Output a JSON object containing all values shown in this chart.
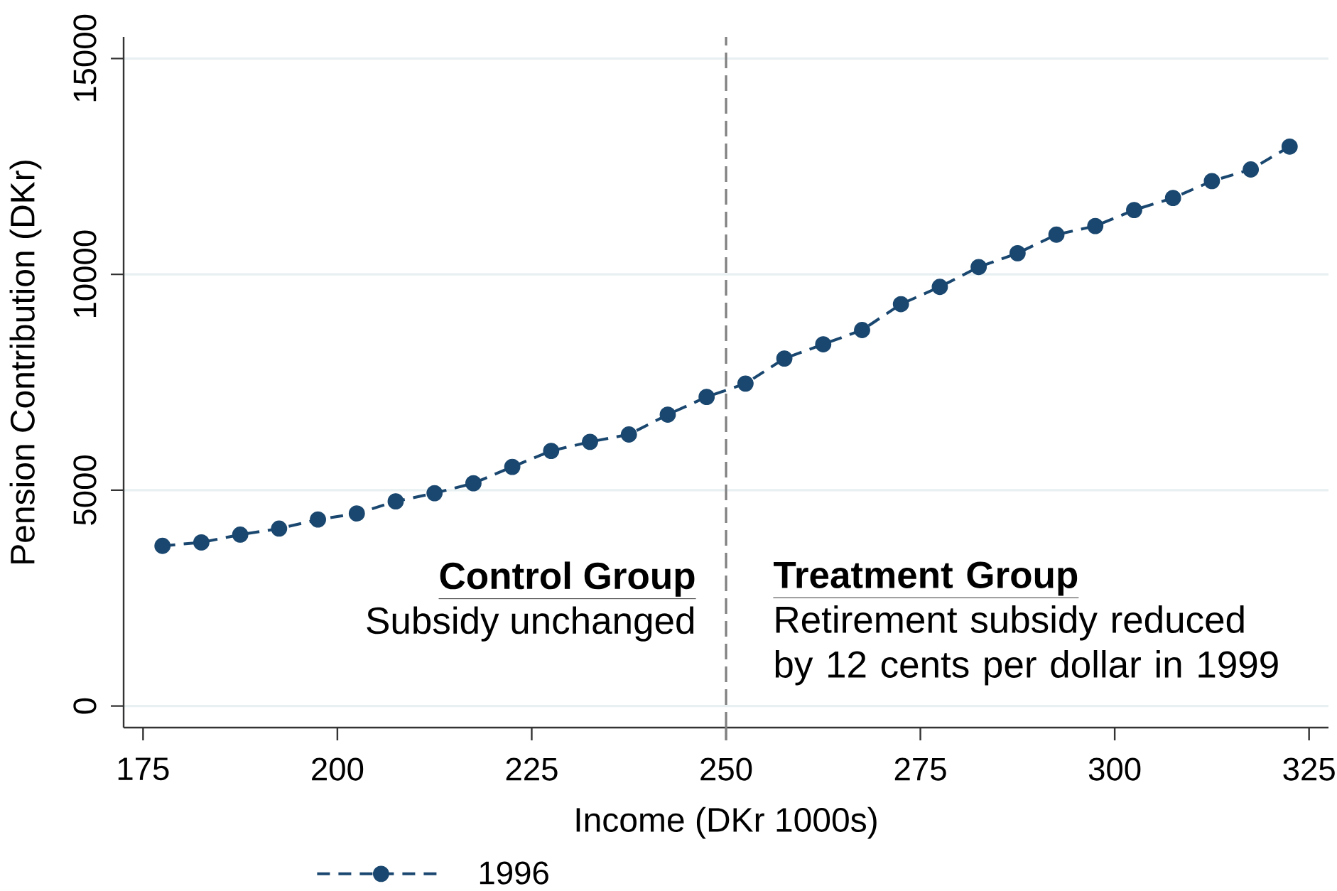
{
  "chart_data": {
    "type": "line",
    "xlabel": "Income (DKr 1000s)",
    "ylabel": "Pension Contribution (DKr)",
    "x": [
      177.5,
      182.5,
      187.5,
      192.5,
      197.5,
      202.5,
      207.5,
      212.5,
      217.5,
      222.5,
      227.5,
      232.5,
      237.5,
      242.5,
      247.5,
      252.5,
      257.5,
      262.5,
      267.5,
      272.5,
      277.5,
      282.5,
      287.5,
      292.5,
      297.5,
      302.5,
      307.5,
      312.5,
      317.5,
      322.5
    ],
    "series": [
      {
        "name": "1996",
        "color": "#1a476f",
        "values": [
          3710,
          3790,
          3970,
          4110,
          4320,
          4460,
          4740,
          4930,
          5160,
          5540,
          5910,
          6120,
          6290,
          6750,
          7160,
          7470,
          8050,
          8380,
          8710,
          9310,
          9710,
          10170,
          10490,
          10920,
          11120,
          11490,
          11770,
          12160,
          12430,
          12960
        ]
      }
    ],
    "xlim": [
      172.5,
      327.5
    ],
    "ylim": [
      -500,
      15500
    ],
    "xticks": [
      175,
      200,
      225,
      250,
      275,
      300,
      325
    ],
    "yticks": [
      0,
      5000,
      10000,
      15000
    ],
    "grid": "y",
    "legend": "bottom",
    "marker": "circle",
    "line_style": "dashed",
    "ref_lines": [
      {
        "axis": "x",
        "value": 250,
        "color": "#808080",
        "line_style": "dashed"
      }
    ],
    "annotations": [
      "Control Group",
      "Subsidy unchanged",
      "Treatment Group",
      "Retirement subsidy reduced by 12 cents per dollar in 1999"
    ]
  }
}
